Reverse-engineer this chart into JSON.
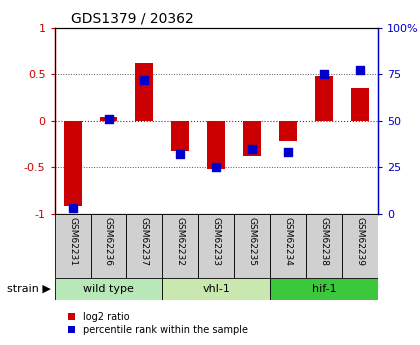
{
  "title": "GDS1379 / 20362",
  "samples": [
    "GSM62231",
    "GSM62236",
    "GSM62237",
    "GSM62232",
    "GSM62233",
    "GSM62235",
    "GSM62234",
    "GSM62238",
    "GSM62239"
  ],
  "log2_ratio": [
    -0.92,
    0.04,
    0.62,
    -0.32,
    -0.52,
    -0.38,
    -0.22,
    0.48,
    0.35
  ],
  "percentile_rank": [
    3,
    51,
    72,
    32,
    25,
    35,
    33,
    75,
    77
  ],
  "groups": [
    {
      "label": "wild type",
      "start": 0,
      "end": 3,
      "color": "#b8e8b8"
    },
    {
      "label": "vhl-1",
      "start": 3,
      "end": 6,
      "color": "#c8e8b0"
    },
    {
      "label": "hif-1",
      "start": 6,
      "end": 9,
      "color": "#3cc83c"
    }
  ],
  "ylim": [
    -1,
    1
  ],
  "y_ticks_left": [
    -1,
    -0.5,
    0,
    0.5,
    1
  ],
  "y_ticks_right": [
    0,
    25,
    50,
    75,
    100
  ],
  "red_color": "#cc0000",
  "blue_color": "#0000cc",
  "dotted_color": "#555555",
  "zero_line_color": "#cc0000",
  "sample_bg": "#d0d0d0",
  "bar_width": 0.5
}
